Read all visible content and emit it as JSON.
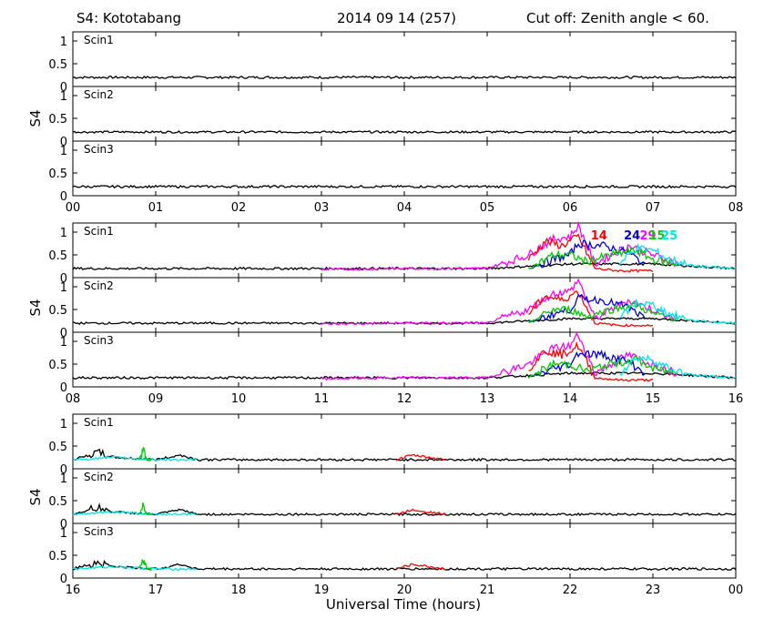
{
  "header": {
    "left": "S4: Kototabang",
    "center": "2014 09 14 (257)",
    "right": "Cut off: Zenith angle < 60."
  },
  "colors": {
    "black": "#000000",
    "red": "#ff0000",
    "blue": "#0000dd",
    "green": "#00cc00",
    "magenta": "#ff00ff",
    "cyan": "#00e8e8",
    "crimson": "#ff0066"
  },
  "chart_data": {
    "type": "line",
    "ylabel": "S4",
    "xlabel": "Universal Time (hours)",
    "ylim": [
      0,
      1.2
    ],
    "yticks": [
      "0",
      "0.5",
      "1"
    ],
    "panel_labels": [
      "Scin1",
      "Scin2",
      "Scin3"
    ],
    "groups": [
      {
        "xlim": [
          0,
          8
        ],
        "xtick_labels": [
          "00",
          "01",
          "02",
          "03",
          "04",
          "05",
          "06",
          "07",
          "08"
        ],
        "series": [
          {
            "color": "black",
            "x": [
              0,
              1,
              2,
              3,
              4,
              5,
              6,
              7,
              8
            ],
            "y": [
              0.2,
              0.2,
              0.2,
              0.2,
              0.2,
              0.2,
              0.2,
              0.2,
              0.2
            ]
          }
        ]
      },
      {
        "xlim": [
          8,
          16
        ],
        "xtick_labels": [
          "08",
          "09",
          "10",
          "11",
          "12",
          "13",
          "14",
          "15",
          "16"
        ],
        "sat_labels": [
          {
            "text": "14",
            "color": "red"
          },
          {
            "text": "24",
            "color": "blue"
          },
          {
            "text": "29",
            "color": "magenta"
          },
          {
            "text": "15",
            "color": "green"
          },
          {
            "text": "25",
            "color": "cyan"
          }
        ],
        "series": [
          {
            "color": "black",
            "x": [
              8,
              9,
              10,
              11,
              12,
              13,
              13.5,
              14,
              15,
              15.5,
              16
            ],
            "y": [
              0.2,
              0.2,
              0.2,
              0.2,
              0.2,
              0.2,
              0.25,
              0.3,
              0.3,
              0.25,
              0.2
            ]
          },
          {
            "color": "magenta",
            "x": [
              11,
              12,
              13,
              13.5,
              13.8,
              14.0,
              14.1,
              14.3,
              14.7,
              15.0,
              15.3
            ],
            "y": [
              0.18,
              0.2,
              0.2,
              0.5,
              0.85,
              0.9,
              1.15,
              0.3,
              0.7,
              0.5,
              0.3
            ]
          },
          {
            "color": "red",
            "x": [
              13.5,
              13.7,
              13.9,
              14.1,
              14.3,
              14.6,
              15.0
            ],
            "y": [
              0.4,
              0.8,
              0.7,
              0.9,
              0.2,
              0.15,
              0.15
            ]
          },
          {
            "color": "blue",
            "x": [
              13.5,
              13.8,
              14.0,
              14.1,
              14.4,
              14.7,
              14.9
            ],
            "y": [
              0.2,
              0.4,
              0.5,
              0.75,
              0.7,
              0.55,
              0.3
            ]
          },
          {
            "color": "green",
            "x": [
              13.5,
              13.8,
              14.0,
              14.2,
              14.5,
              14.8,
              15.0,
              15.3
            ],
            "y": [
              0.2,
              0.5,
              0.5,
              0.35,
              0.5,
              0.6,
              0.4,
              0.3
            ]
          },
          {
            "color": "cyan",
            "x": [
              14.6,
              14.8,
              15.0,
              15.2,
              15.5,
              16.0
            ],
            "y": [
              0.3,
              0.65,
              0.6,
              0.4,
              0.25,
              0.2
            ]
          }
        ]
      },
      {
        "xlim": [
          16,
          24
        ],
        "xtick_labels": [
          "16",
          "17",
          "18",
          "19",
          "20",
          "21",
          "22",
          "23",
          "00"
        ],
        "series": [
          {
            "color": "black",
            "x": [
              16,
              16.3,
              16.5,
              17,
              17.3,
              17.5,
              18,
              20,
              22,
              24
            ],
            "y": [
              0.2,
              0.35,
              0.25,
              0.2,
              0.3,
              0.2,
              0.2,
              0.2,
              0.2,
              0.2
            ]
          },
          {
            "color": "cyan",
            "x": [
              16,
              16.5,
              17,
              17.5
            ],
            "y": [
              0.2,
              0.25,
              0.2,
              0.2
            ]
          },
          {
            "color": "green",
            "x": [
              16.8,
              16.85,
              16.9,
              16.95
            ],
            "y": [
              0.2,
              0.4,
              0.2,
              0.2
            ]
          },
          {
            "color": "red",
            "x": [
              19.9,
              20.1,
              20.3,
              20.5
            ],
            "y": [
              0.2,
              0.3,
              0.25,
              0.2
            ]
          }
        ]
      }
    ]
  }
}
